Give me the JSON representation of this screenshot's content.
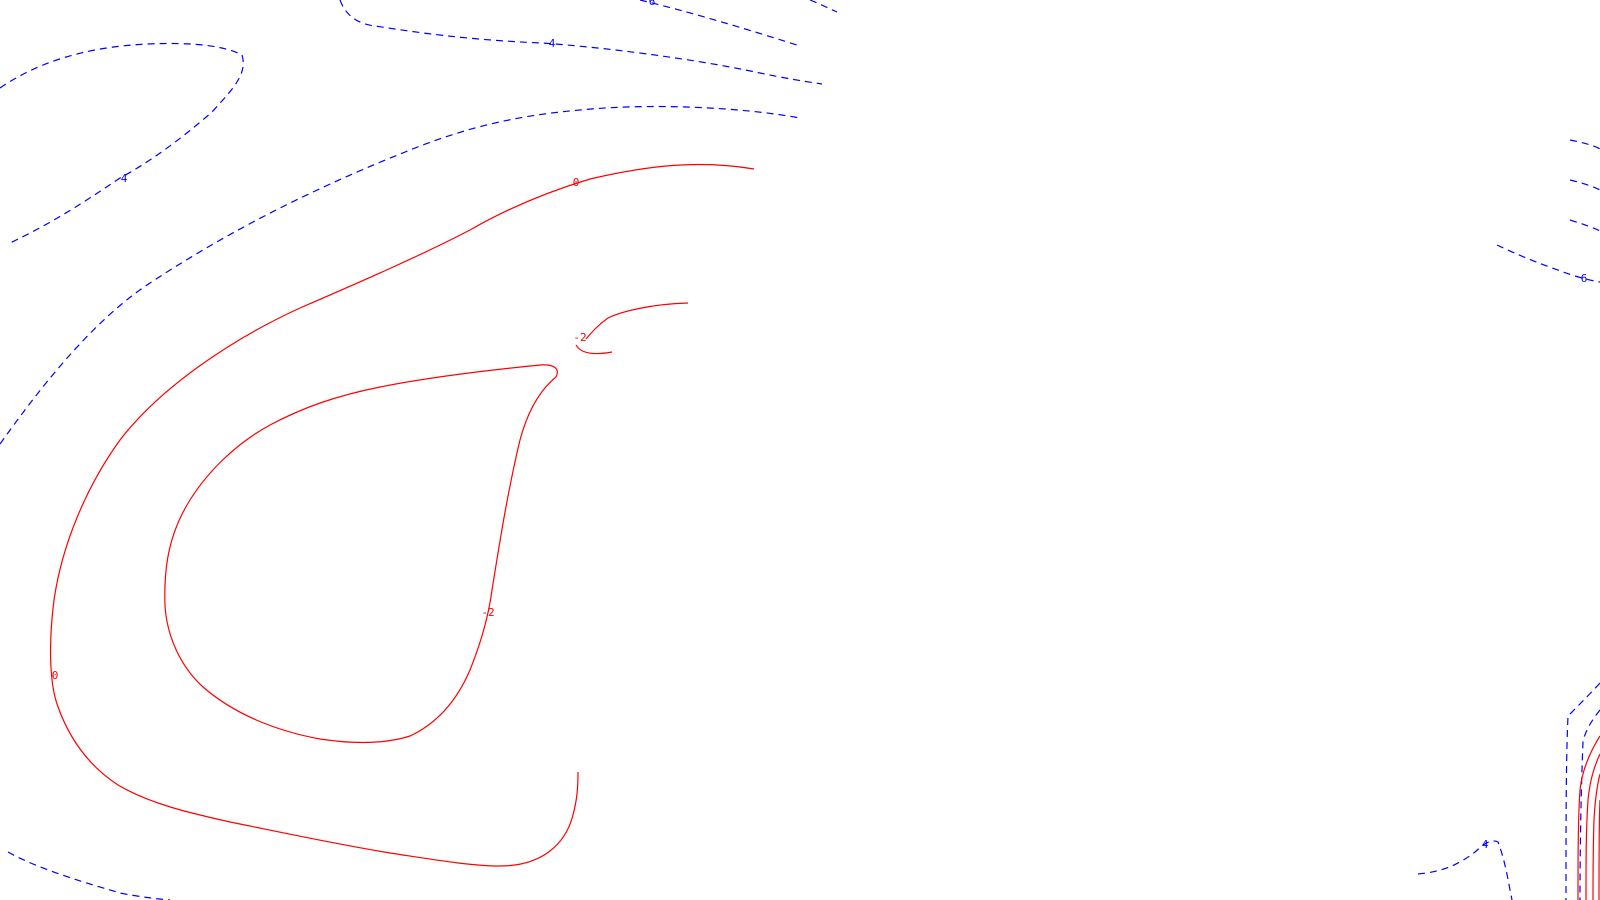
{
  "contour_plot": {
    "colors": {
      "positive": "#0000ff",
      "negative": "#ff0000",
      "zero": "#ff0000",
      "background": "#ffffff"
    },
    "contour_labels": [
      {
        "id": "label-4-top",
        "text": "4",
        "color": "#0000ff"
      },
      {
        "id": "label-4-left",
        "text": "4",
        "color": "#0000ff"
      },
      {
        "id": "label-6-top",
        "text": "6",
        "color": "#0000ff"
      },
      {
        "id": "label-6-right",
        "text": "6",
        "color": "#0000ff"
      },
      {
        "id": "label-4-bottom-right",
        "text": "4",
        "color": "#0000ff"
      },
      {
        "id": "label-0-top",
        "text": "0",
        "color": "#ff0000"
      },
      {
        "id": "label-0-left",
        "text": "0",
        "color": "#ff0000"
      },
      {
        "id": "label-minus2-small",
        "text": "-2",
        "color": "#ff0000"
      },
      {
        "id": "label-minus2-center",
        "text": "-2",
        "color": "#ff0000"
      }
    ]
  }
}
